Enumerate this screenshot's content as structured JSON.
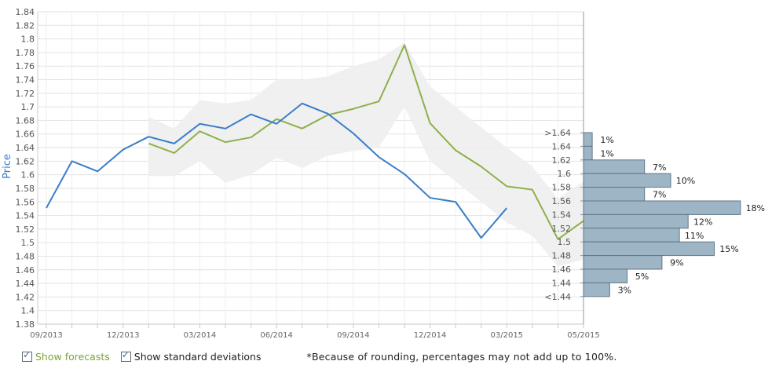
{
  "chart_data": {
    "type": "line",
    "title": "",
    "ylabel": "Price",
    "ylim": [
      1.38,
      1.84
    ],
    "yticks": [
      "1.84",
      "1.82",
      "1.8",
      "1.78",
      "1.76",
      "1.74",
      "1.72",
      "1.7",
      "1.68",
      "1.66",
      "1.64",
      "1.62",
      "1.6",
      "1.58",
      "1.56",
      "1.54",
      "1.52",
      "1.5",
      "1.48",
      "1.46",
      "1.44",
      "1.42",
      "1.4",
      "1.38"
    ],
    "xticks": [
      "09/2013",
      "12/2013",
      "03/2014",
      "06/2014",
      "09/2014",
      "12/2014",
      "03/2015",
      "05/2015"
    ],
    "x_index_range": [
      0,
      21
    ],
    "xtick_index": [
      0,
      3,
      6,
      9,
      12,
      15,
      18,
      21
    ],
    "series": [
      {
        "name": "Price",
        "color": "#3a7dc9",
        "x_index": [
          0,
          1,
          2,
          3,
          4,
          5,
          6,
          7,
          8,
          9,
          10,
          11,
          12,
          13,
          14,
          15,
          16,
          17,
          18
        ],
        "values": [
          1.551,
          1.62,
          1.605,
          1.637,
          1.656,
          1.646,
          1.675,
          1.668,
          1.689,
          1.675,
          1.705,
          1.69,
          1.661,
          1.626,
          1.601,
          1.566,
          1.56,
          1.507,
          1.551
        ]
      },
      {
        "name": "Forecast",
        "color": "#8db04a",
        "x_index": [
          4,
          5,
          6,
          7,
          8,
          9,
          10,
          11,
          12,
          13,
          14,
          15,
          16,
          17,
          18,
          19,
          20,
          21
        ],
        "values": [
          1.646,
          1.632,
          1.664,
          1.648,
          1.655,
          1.682,
          1.668,
          1.688,
          1.697,
          1.708,
          1.791,
          1.676,
          1.636,
          1.612,
          1.583,
          1.578,
          1.505,
          1.532
        ]
      },
      {
        "name": "Standard deviation",
        "color": "#eeeeee",
        "x_index": [
          4,
          5,
          6,
          7,
          8,
          9,
          10,
          11,
          12,
          13,
          14,
          15,
          16,
          17,
          18,
          19,
          20,
          21
        ],
        "upper": [
          1.685,
          1.668,
          1.71,
          1.705,
          1.71,
          1.74,
          1.74,
          1.745,
          1.76,
          1.77,
          1.795,
          1.73,
          1.7,
          1.67,
          1.64,
          1.612,
          1.565,
          1.59
        ],
        "lower": [
          1.598,
          1.598,
          1.62,
          1.588,
          1.6,
          1.625,
          1.61,
          1.628,
          1.635,
          1.64,
          1.7,
          1.62,
          1.59,
          1.56,
          1.53,
          1.51,
          1.465,
          1.475
        ]
      }
    ],
    "distribution": {
      "title": "",
      "buckets": [
        ">1.64",
        "1.64",
        "1.62",
        "1.6",
        "1.58",
        "1.56",
        "1.54",
        "1.52",
        "1.5",
        "1.48",
        "1.46",
        "1.44",
        "<1.44"
      ],
      "percent": [
        1,
        1,
        7,
        10,
        7,
        18,
        12,
        11,
        15,
        9,
        5,
        3
      ],
      "percent_labels": [
        "1%",
        "1%",
        "7%",
        "10%",
        "7%",
        "18%",
        "12%",
        "11%",
        "15%",
        "9%",
        "5%",
        "3%"
      ],
      "bar_color": "#9db5c5"
    },
    "grid": true,
    "legend": "none"
  },
  "controls": {
    "show_forecasts": {
      "label": "Show forecasts",
      "checked": true
    },
    "show_std": {
      "label": "Show standard deviations",
      "checked": true
    }
  },
  "footnote": "*Because of rounding, percentages may not add up to 100%."
}
